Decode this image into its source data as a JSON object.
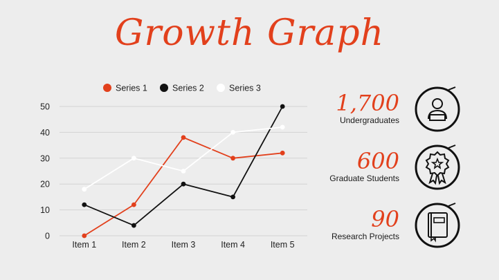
{
  "title": "Growth Graph",
  "colors": {
    "accent": "#e2401c",
    "series1": "#e2401c",
    "series2": "#111111",
    "series3": "#ffffff",
    "grid": "#d3d3d3",
    "text": "#222222"
  },
  "chart_data": {
    "type": "line",
    "categories": [
      "Item 1",
      "Item 2",
      "Item 3",
      "Item 4",
      "Item 5"
    ],
    "series": [
      {
        "name": "Series 1",
        "values": [
          0,
          12,
          38,
          30,
          32
        ]
      },
      {
        "name": "Series 2",
        "values": [
          12,
          4,
          20,
          15,
          50
        ]
      },
      {
        "name": "Series 3",
        "values": [
          18,
          30,
          25,
          40,
          42
        ]
      }
    ],
    "ylim": [
      0,
      50
    ],
    "yticks": [
      "0",
      "10",
      "20",
      "30",
      "40",
      "50"
    ],
    "grid": true,
    "legend": "top"
  },
  "stats": [
    {
      "value": "1,700",
      "label": "Undergraduates",
      "icon": "student-icon"
    },
    {
      "value": "600",
      "label": "Graduate Students",
      "icon": "award-ribbon-icon"
    },
    {
      "value": "90",
      "label": "Research Projects",
      "icon": "book-icon"
    }
  ]
}
